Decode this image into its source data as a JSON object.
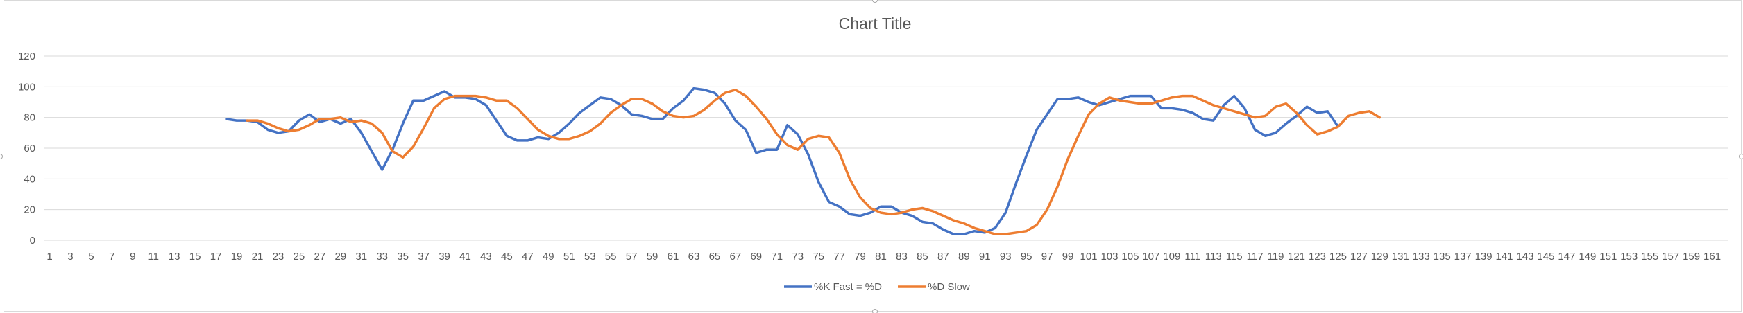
{
  "chart_data": {
    "type": "line",
    "title": "Chart Title",
    "xlabel": "",
    "ylabel": "",
    "ylim": [
      0,
      120
    ],
    "yticks": [
      0,
      20,
      40,
      60,
      80,
      100,
      120
    ],
    "x_range": [
      1,
      162
    ],
    "xtick_labels": [
      "1",
      "3",
      "5",
      "7",
      "9",
      "11",
      "13",
      "15",
      "17",
      "19",
      "21",
      "23",
      "25",
      "27",
      "29",
      "31",
      "33",
      "35",
      "37",
      "39",
      "41",
      "43",
      "45",
      "47",
      "49",
      "51",
      "53",
      "55",
      "57",
      "59",
      "61",
      "63",
      "65",
      "67",
      "69",
      "71",
      "73",
      "75",
      "77",
      "79",
      "81",
      "83",
      "85",
      "87",
      "89",
      "91",
      "93",
      "95",
      "97",
      "99",
      "101",
      "103",
      "105",
      "107",
      "109",
      "111",
      "113",
      "115",
      "117",
      "119",
      "121",
      "123",
      "125",
      "127",
      "129",
      "131",
      "133",
      "135",
      "137",
      "139",
      "141",
      "143",
      "145",
      "147",
      "149",
      "151",
      "153",
      "155",
      "157",
      "159",
      "161"
    ],
    "grid": true,
    "legend_position": "bottom",
    "series": [
      {
        "name": "%K Fast = %D",
        "color": "#4472C4",
        "start_x": 18,
        "values": [
          79,
          78,
          78,
          77,
          72,
          70,
          71,
          78,
          82,
          77,
          79,
          76,
          79,
          70,
          58,
          46,
          59,
          76,
          91,
          91,
          94,
          97,
          93,
          93,
          92,
          88,
          78,
          68,
          65,
          65,
          67,
          66,
          70,
          76,
          83,
          88,
          93,
          92,
          88,
          82,
          81,
          79,
          79,
          86,
          91,
          99,
          98,
          96,
          89,
          78,
          72,
          57,
          59,
          59,
          75,
          69,
          56,
          38,
          25,
          22,
          17,
          16,
          18,
          22,
          22,
          18,
          16,
          12,
          11,
          7,
          4,
          4,
          6,
          5,
          8,
          18,
          37,
          55,
          72,
          82,
          92,
          92,
          93,
          90,
          88,
          90,
          92,
          94,
          94,
          94,
          86,
          86,
          85,
          83,
          79,
          78,
          88,
          94,
          86,
          72,
          68,
          70,
          76,
          81,
          87,
          83,
          84,
          74
        ]
      },
      {
        "name": "%D Slow",
        "color": "#ED7D31",
        "start_x": 20,
        "values": [
          78,
          78,
          76,
          73,
          71,
          72,
          75,
          79,
          79,
          80,
          77,
          78,
          76,
          70,
          58,
          54,
          61,
          73,
          86,
          92,
          94,
          94,
          94,
          93,
          91,
          91,
          86,
          79,
          72,
          68,
          66,
          66,
          68,
          71,
          76,
          83,
          88,
          92,
          92,
          89,
          84,
          81,
          80,
          81,
          85,
          91,
          96,
          98,
          94,
          87,
          79,
          69,
          62,
          59,
          66,
          68,
          67,
          57,
          40,
          28,
          21,
          18,
          17,
          18,
          20,
          21,
          19,
          16,
          13,
          11,
          8,
          6,
          4,
          4,
          5,
          6,
          10,
          20,
          35,
          53,
          68,
          82,
          89,
          93,
          91,
          90,
          89,
          89,
          91,
          93,
          94,
          94,
          91,
          88,
          86,
          84,
          82,
          80,
          81,
          87,
          89,
          83,
          75,
          69,
          71,
          74,
          81,
          83,
          84,
          80
        ]
      }
    ]
  }
}
